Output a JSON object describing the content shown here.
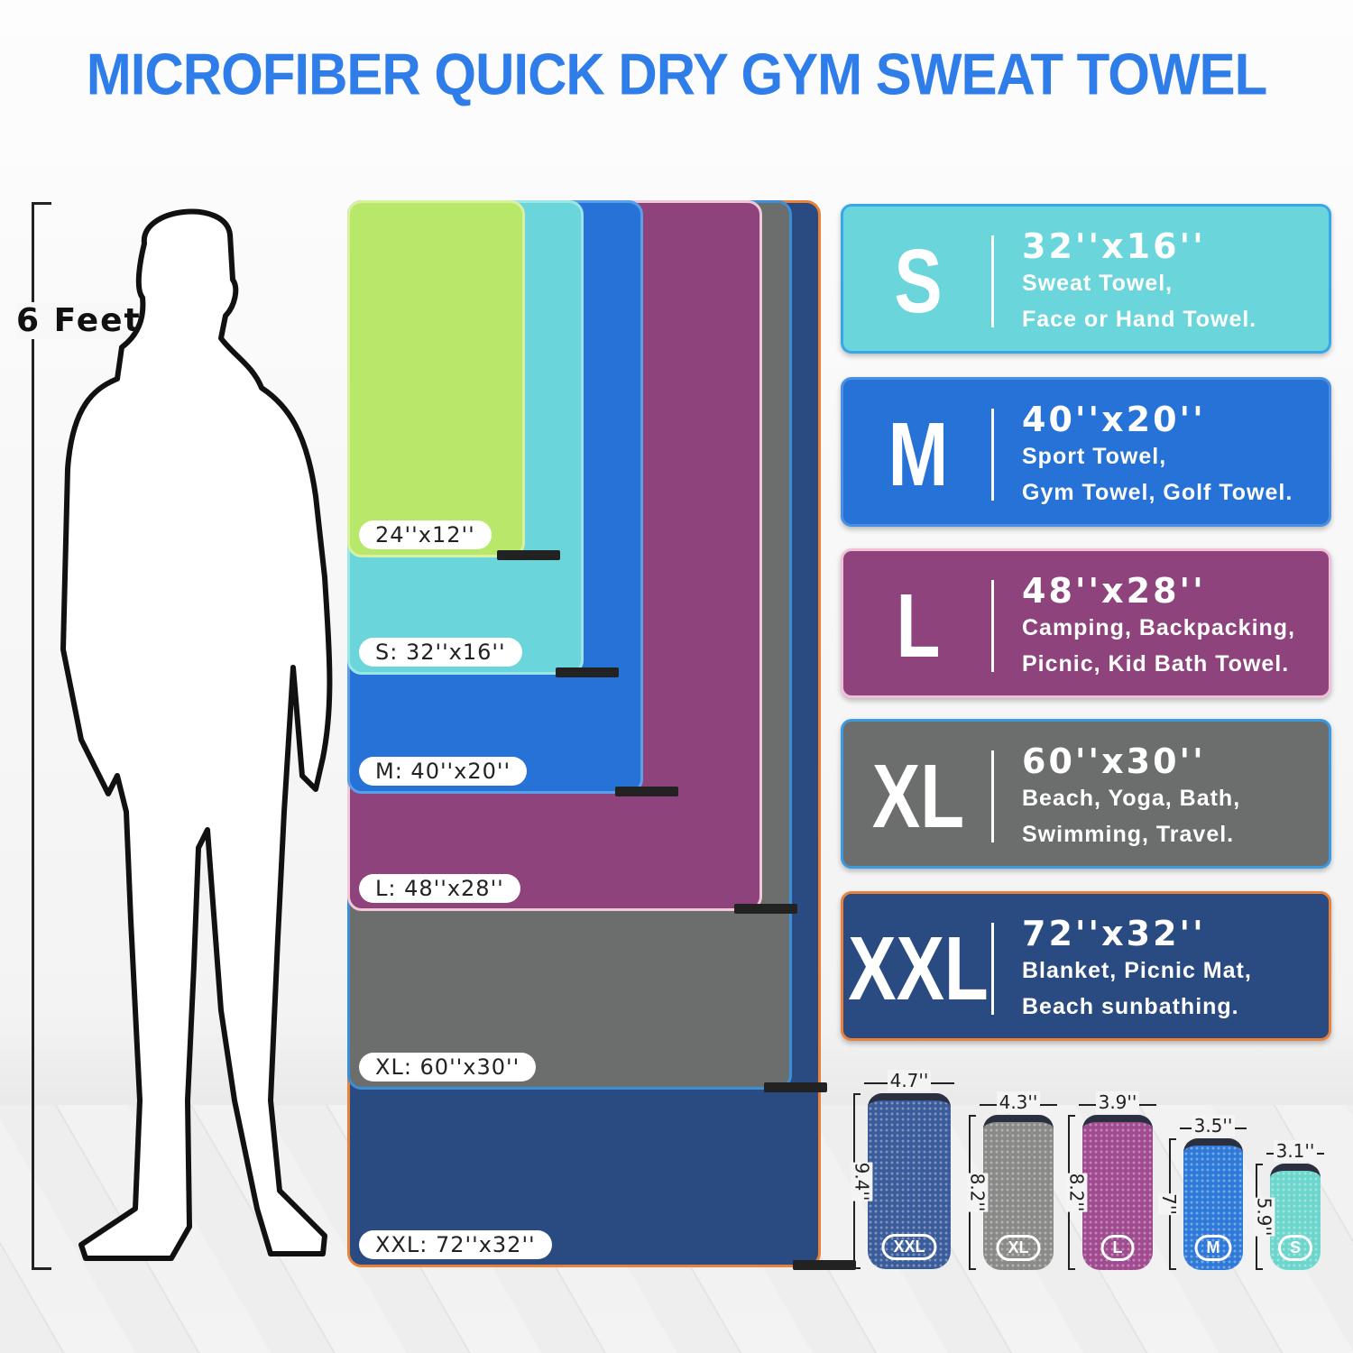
{
  "title": "MICROFIBER QUICK DRY GYM SWEAT TOWEL",
  "height_label": "6 Feet",
  "towels": [
    {
      "label": "XXL: 72''x32''",
      "color": "#2a4a82",
      "border": "#e8823a"
    },
    {
      "label": "XL: 60''x30''",
      "color": "#6b6e6c",
      "border": "#3b8fd8"
    },
    {
      "label": "L: 48''x28''",
      "color": "#8e437c",
      "border": "#f0c8d8"
    },
    {
      "label": "M: 40''x20''",
      "color": "#2672d6",
      "border": "#5aa0e8"
    },
    {
      "label": "S: 32''x16''",
      "color": "#6ad5da",
      "border": "#9be6e8"
    },
    {
      "label": "24''x12''",
      "color": "#b8e86a",
      "border": "#d8f0a0"
    }
  ],
  "cards": [
    {
      "size": "S",
      "dim": "32''x16''",
      "line1": "Sweat Towel,",
      "line2": "Face or Hand Towel.",
      "color": "#6ad5da",
      "border": "#3aa6e8"
    },
    {
      "size": "M",
      "dim": "40''x20''",
      "line1": "Sport Towel,",
      "line2": "Gym Towel, Golf Towel.",
      "color": "#2672d6",
      "border": "#4a8fe0"
    },
    {
      "size": "L",
      "dim": "48''x28''",
      "line1": "Camping, Backpacking,",
      "line2": "Picnic, Kid Bath Towel.",
      "color": "#8e437c",
      "border": "#f0c0d8"
    },
    {
      "size": "XL",
      "dim": "60''x30''",
      "line1": "Beach, Yoga, Bath,",
      "line2": "Swimming, Travel.",
      "color": "#6b6e6c",
      "border": "#3b9ae0"
    },
    {
      "size": "XXL",
      "dim": "72''x32''",
      "line1": "Blanket, Picnic Mat,",
      "line2": "Beach sunbathing.",
      "color": "#2a4a82",
      "border": "#e8823a"
    }
  ],
  "pouches": [
    {
      "size": "XXL",
      "width": "4.7''",
      "height": "9.4''",
      "color": "#3a5c9a"
    },
    {
      "size": "XL",
      "width": "4.3''",
      "height": "8.2''",
      "color": "#8a8a88"
    },
    {
      "size": "L",
      "width": "3.9''",
      "height": "8.2''",
      "color": "#a04a90"
    },
    {
      "size": "M",
      "width": "3.5''",
      "height": "7''",
      "color": "#2f7ad8"
    },
    {
      "size": "S",
      "width": "3.1''",
      "height": "5.9''",
      "color": "#6cd6cc"
    }
  ]
}
